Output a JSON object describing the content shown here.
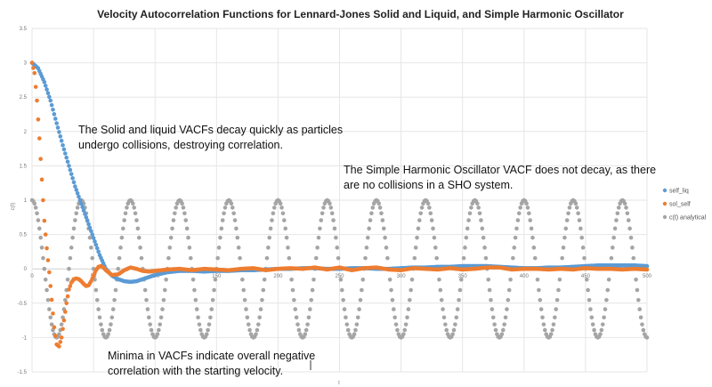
{
  "chart_data": {
    "type": "scatter",
    "title": "Velocity Autocorrelation Functions for Lennard-Jones Solid and Liquid, and Simple Harmonic Oscillator",
    "xlabel": "t",
    "ylabel": "c(t)",
    "xlim": [
      0,
      500
    ],
    "ylim": [
      -1.5,
      3.5
    ],
    "xticks": [
      0,
      50,
      100,
      150,
      200,
      250,
      300,
      350,
      400,
      450,
      500
    ],
    "yticks": [
      -1.5,
      -1,
      -0.5,
      0,
      0.5,
      1,
      1.5,
      2,
      2.5,
      3,
      3.5
    ],
    "grid": true,
    "legend_position": "right",
    "series": [
      {
        "name": "self_liq",
        "color": "#5b9bd5",
        "x": [
          0,
          5,
          10,
          15,
          20,
          25,
          30,
          35,
          40,
          45,
          50,
          55,
          60,
          65,
          70,
          75,
          80,
          85,
          90,
          95,
          100,
          110,
          120,
          130,
          140,
          150,
          160,
          170,
          180,
          190,
          200,
          210,
          220,
          230,
          240,
          250,
          260,
          270,
          280,
          290,
          300,
          310,
          320,
          330,
          340,
          350,
          360,
          370,
          380,
          390,
          400,
          410,
          420,
          430,
          440,
          450,
          460,
          470,
          480,
          490,
          500
        ],
        "y": [
          3.0,
          2.92,
          2.72,
          2.45,
          2.12,
          1.8,
          1.5,
          1.2,
          0.95,
          0.7,
          0.45,
          0.2,
          0.0,
          -0.1,
          -0.15,
          -0.18,
          -0.19,
          -0.18,
          -0.15,
          -0.12,
          -0.09,
          -0.05,
          -0.03,
          -0.03,
          -0.04,
          -0.03,
          -0.03,
          -0.02,
          -0.02,
          -0.01,
          0.0,
          0.0,
          0.01,
          0.01,
          0.0,
          0.0,
          0.01,
          0.01,
          0.0,
          0.0,
          0.01,
          0.02,
          0.02,
          0.03,
          0.03,
          0.04,
          0.04,
          0.04,
          0.03,
          0.02,
          0.01,
          0.01,
          0.02,
          0.02,
          0.03,
          0.04,
          0.05,
          0.05,
          0.05,
          0.05,
          0.04
        ]
      },
      {
        "name": "sol_self",
        "color": "#ed7d31",
        "x": [
          0,
          2,
          4,
          6,
          8,
          10,
          12,
          14,
          16,
          18,
          20,
          22,
          24,
          26,
          28,
          30,
          32,
          34,
          36,
          38,
          40,
          42,
          44,
          46,
          48,
          50,
          52,
          54,
          56,
          58,
          60,
          65,
          70,
          75,
          80,
          85,
          90,
          95,
          100,
          110,
          120,
          130,
          140,
          150,
          160,
          170,
          180,
          190,
          200,
          210,
          220,
          230,
          240,
          250,
          260,
          270,
          280,
          290,
          300,
          310,
          320,
          330,
          340,
          350,
          360,
          370,
          380,
          390,
          400,
          410,
          420,
          430,
          440,
          450,
          460,
          470,
          480,
          490,
          500
        ],
        "y": [
          3.0,
          2.85,
          2.45,
          1.9,
          1.3,
          0.7,
          0.3,
          -0.05,
          -0.45,
          -0.85,
          -1.1,
          -1.13,
          -1.0,
          -0.75,
          -0.5,
          -0.3,
          -0.2,
          -0.15,
          -0.14,
          -0.15,
          -0.18,
          -0.22,
          -0.25,
          -0.24,
          -0.18,
          -0.1,
          -0.02,
          0.03,
          0.04,
          0.02,
          -0.02,
          -0.09,
          -0.08,
          -0.02,
          0.02,
          0.0,
          -0.03,
          -0.04,
          -0.03,
          -0.01,
          0.0,
          -0.02,
          0.0,
          -0.01,
          -0.02,
          0.0,
          0.01,
          -0.02,
          0.0,
          0.01,
          0.0,
          0.02,
          -0.01,
          0.02,
          -0.02,
          0.01,
          0.02,
          -0.01,
          -0.02,
          0.01,
          0.0,
          -0.01,
          0.01,
          -0.01,
          0.0,
          0.02,
          0.02,
          -0.01,
          0.0,
          0.0,
          -0.01,
          0.0,
          -0.01,
          0.01,
          0.0,
          0.0,
          -0.01,
          0.0,
          -0.01
        ]
      },
      {
        "name": "c(t) analytical",
        "color": "#a5a5a5",
        "function": "cos",
        "amplitude": 1,
        "period": 40
      }
    ],
    "annotations": [
      {
        "lines": [
          "The Solid and liquid VACFs decay quickly as particles",
          "undergo collisions, destroying correlation."
        ]
      },
      {
        "lines": [
          "The Simple Harmonic Oscillator VACF does not decay, as there",
          "are no collisions in a SHO system."
        ]
      },
      {
        "lines": [
          "Minima in VACFs indicate overall negative",
          "correlation with the starting velocity."
        ]
      }
    ]
  }
}
